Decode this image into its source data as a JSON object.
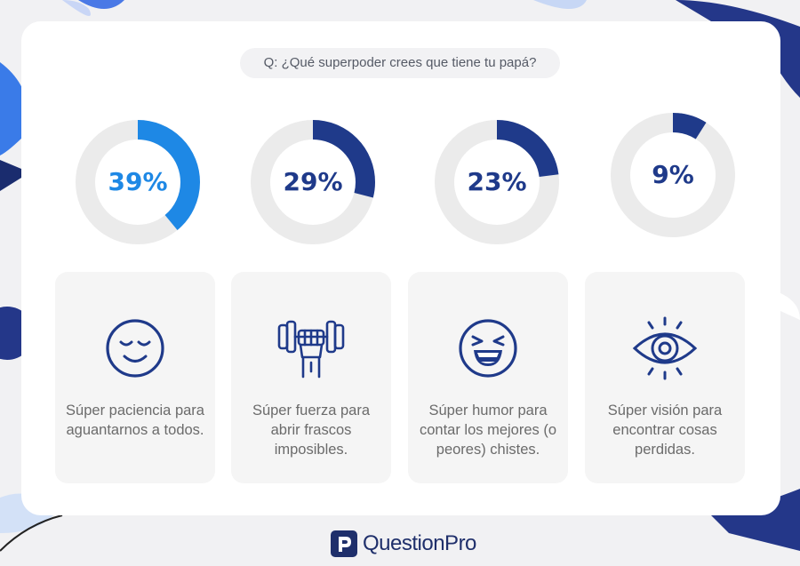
{
  "question": "Q: ¿Qué superpoder crees que tiene tu papá?",
  "chart_data": {
    "type": "donut",
    "series": [
      {
        "value": 39,
        "label_text": "39%",
        "color": "#1e88e5"
      },
      {
        "value": 29,
        "label_text": "29%",
        "color": "#1f3a8a"
      },
      {
        "value": 23,
        "label_text": "23%",
        "color": "#1f3a8a"
      },
      {
        "value": 9,
        "label_text": "9%",
        "color": "#1f3a8a"
      }
    ],
    "track_color": "#ebebeb",
    "max": 100
  },
  "options": [
    {
      "icon": "relaxed-face-icon",
      "label": "Súper paciencia para aguantarnos a todos."
    },
    {
      "icon": "dumbbell-fist-icon",
      "label": "Súper fuerza para abrir frascos imposibles."
    },
    {
      "icon": "laughing-face-icon",
      "label": "Súper humor para contar los mejores (o peores) chistes."
    },
    {
      "icon": "eye-icon",
      "label": "Súper visión para encontrar cosas perdidas."
    }
  ],
  "brand": {
    "name": "QuestionPro",
    "icon": "questionpro-logo-icon",
    "color": "#1f2f6b"
  }
}
